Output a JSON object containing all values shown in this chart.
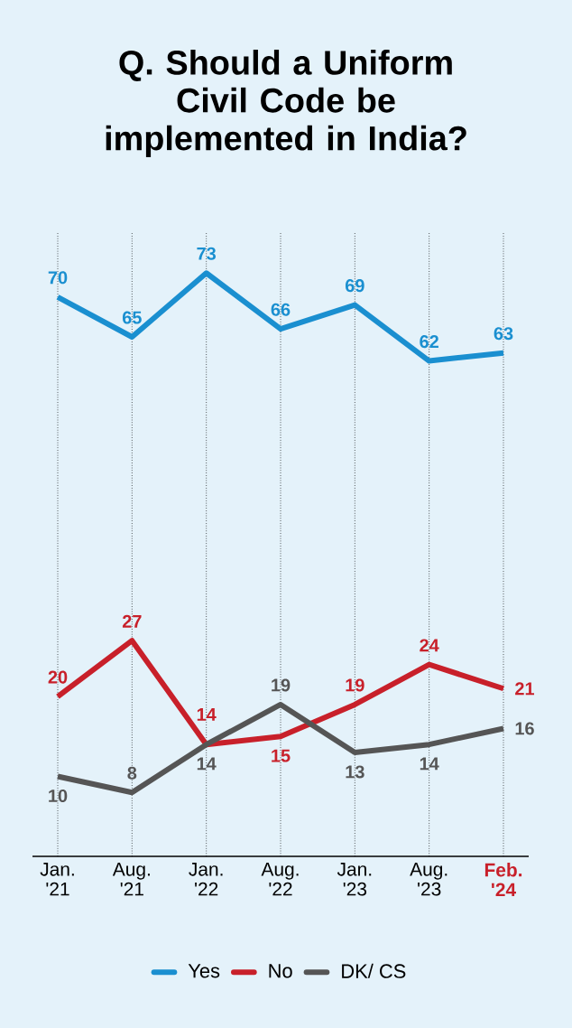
{
  "chart_data": {
    "type": "line",
    "title": "Q. Should a Uniform Civil Code be implemented in India?",
    "categories": [
      "Jan. '21",
      "Aug. '21",
      "Jan. '22",
      "Aug. '22",
      "Jan. '23",
      "Aug. '23",
      "Feb. '24"
    ],
    "series": [
      {
        "name": "Yes",
        "color": "#1a8fd0",
        "values": [
          70,
          65,
          73,
          66,
          69,
          62,
          63
        ]
      },
      {
        "name": "No",
        "color": "#c8202a",
        "values": [
          20,
          27,
          14,
          15,
          19,
          24,
          21
        ]
      },
      {
        "name": "DK/ CS",
        "color": "#555555",
        "values": [
          10,
          8,
          14,
          19,
          13,
          14,
          16
        ]
      }
    ],
    "ylim": [
      0,
      78
    ],
    "data_labels": true,
    "grid": "x",
    "legend": "bottom",
    "marker": "none",
    "line_style": "solid"
  }
}
